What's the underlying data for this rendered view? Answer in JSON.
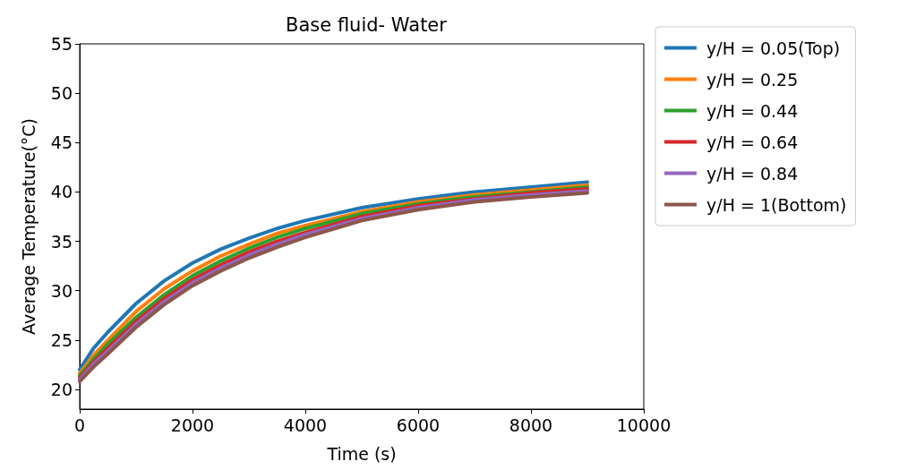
{
  "chart_data": {
    "type": "line",
    "title": "Base fluid- Water",
    "xlabel": "Time (s)",
    "ylabel": "Average Temperature(°C)",
    "x": [
      0,
      250,
      500,
      1000,
      1500,
      2000,
      2500,
      3000,
      3500,
      4000,
      5000,
      6000,
      7000,
      8000,
      9000
    ],
    "series": [
      {
        "name": "y/H = 0.05(Top)",
        "color": "#1f77b4",
        "values": [
          22,
          24.2,
          25.8,
          28.7,
          31.0,
          32.8,
          34.2,
          35.3,
          36.3,
          37.1,
          38.4,
          39.3,
          40.0,
          40.5,
          41.0
        ]
      },
      {
        "name": "y/H = 0.25",
        "color": "#ff7f0e",
        "values": [
          21.6,
          23.5,
          25.0,
          27.9,
          30.2,
          32.0,
          33.5,
          34.7,
          35.8,
          36.6,
          38.0,
          39.0,
          39.7,
          40.2,
          40.7
        ]
      },
      {
        "name": "y/H = 0.44",
        "color": "#2ca02c",
        "values": [
          21.4,
          23.1,
          24.6,
          27.3,
          29.6,
          31.5,
          33.0,
          34.3,
          35.4,
          36.3,
          37.8,
          38.8,
          39.5,
          40.0,
          40.5
        ]
      },
      {
        "name": "y/H = 0.64",
        "color": "#d62728",
        "values": [
          21.2,
          22.8,
          24.2,
          26.9,
          29.2,
          31.1,
          32.6,
          33.9,
          35.0,
          35.9,
          37.5,
          38.6,
          39.3,
          39.9,
          40.3
        ]
      },
      {
        "name": "y/H = 0.84",
        "color": "#9467bd",
        "values": [
          21.0,
          22.6,
          23.9,
          26.6,
          28.9,
          30.8,
          32.3,
          33.6,
          34.7,
          35.7,
          37.3,
          38.4,
          39.2,
          39.7,
          40.1
        ]
      },
      {
        "name": "y/H = 1(Bottom)",
        "color": "#8c564b",
        "values": [
          20.8,
          22.3,
          23.6,
          26.3,
          28.6,
          30.5,
          32.0,
          33.3,
          34.4,
          35.4,
          37.1,
          38.2,
          39.0,
          39.5,
          39.9
        ]
      }
    ],
    "xlim": [
      0,
      10000
    ],
    "xticks": [
      0,
      2000,
      4000,
      6000,
      8000,
      10000
    ],
    "ylim": [
      18,
      55
    ],
    "yticks": [
      20,
      25,
      30,
      35,
      40,
      45,
      50,
      55
    ],
    "grid": false,
    "legend": "top right",
    "marker": "none",
    "line_style": "solid"
  }
}
